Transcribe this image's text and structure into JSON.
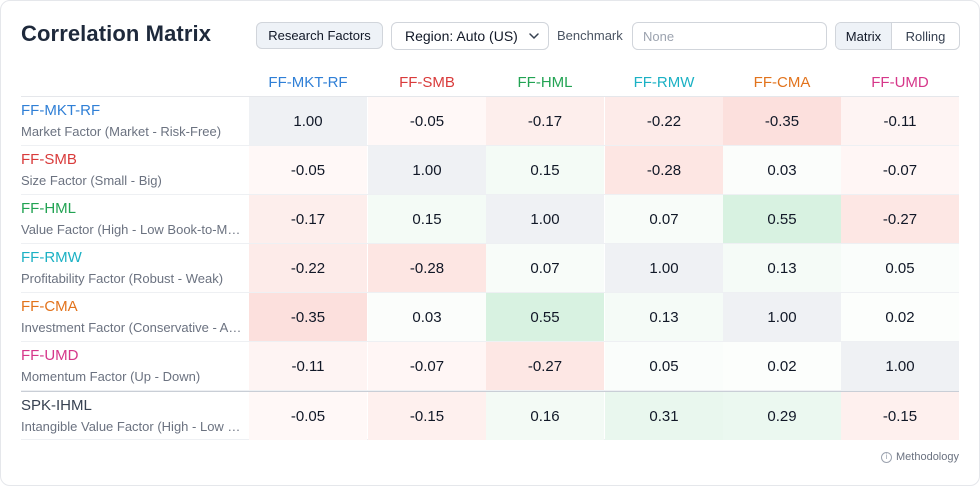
{
  "header": {
    "title": "Correlation Matrix",
    "research_button": "Research Factors",
    "region_select": "Region: Auto (US)",
    "benchmark_label": "Benchmark",
    "benchmark_placeholder": "None",
    "view_toggle": [
      "Matrix",
      "Rolling"
    ],
    "active_view": "Matrix"
  },
  "columns": [
    {
      "code": "FF-MKT-RF",
      "color": "#2f7fd6"
    },
    {
      "code": "FF-SMB",
      "color": "#d93b3b"
    },
    {
      "code": "FF-HML",
      "color": "#22a353"
    },
    {
      "code": "FF-RMW",
      "color": "#1bb1c4"
    },
    {
      "code": "FF-CMA",
      "color": "#e2731c"
    },
    {
      "code": "FF-UMD",
      "color": "#d6378a"
    }
  ],
  "rows": [
    {
      "code": "FF-MKT-RF",
      "desc": "Market Factor (Market - Risk-Free)",
      "color": "#2f7fd6",
      "values": [
        "1.00",
        "-0.05",
        "-0.17",
        "-0.22",
        "-0.35",
        "-0.11"
      ],
      "bg": [
        "#eff1f4",
        "#fff8f7",
        "#fdeeec",
        "#fdebe9",
        "#fce0dd",
        "#fef4f3"
      ]
    },
    {
      "code": "FF-SMB",
      "desc": "Size Factor (Small - Big)",
      "color": "#d93b3b",
      "values": [
        "-0.05",
        "1.00",
        "0.15",
        "-0.28",
        "0.03",
        "-0.07"
      ],
      "bg": [
        "#fff8f7",
        "#eff1f4",
        "#f4fbf6",
        "#fde6e3",
        "#fbfdfb",
        "#fff6f5"
      ]
    },
    {
      "code": "FF-HML",
      "desc": "Value Factor (High - Low Book-to-Market)",
      "color": "#22a353",
      "values": [
        "-0.17",
        "0.15",
        "1.00",
        "0.07",
        "0.55",
        "-0.27"
      ],
      "bg": [
        "#fdeeec",
        "#f4fbf6",
        "#eff1f4",
        "#f8fcf9",
        "#d8f2e1",
        "#fde7e4"
      ]
    },
    {
      "code": "FF-RMW",
      "desc": "Profitability Factor (Robust - Weak)",
      "color": "#1bb1c4",
      "values": [
        "-0.22",
        "-0.28",
        "0.07",
        "1.00",
        "0.13",
        "0.05"
      ],
      "bg": [
        "#fdebe9",
        "#fde6e3",
        "#f8fcf9",
        "#eff1f4",
        "#f5fbf7",
        "#fafdfb"
      ]
    },
    {
      "code": "FF-CMA",
      "desc": "Investment Factor (Conservative - Aggressive)",
      "color": "#e2731c",
      "values": [
        "-0.35",
        "0.03",
        "0.55",
        "0.13",
        "1.00",
        "0.02"
      ],
      "bg": [
        "#fce0dd",
        "#fbfdfb",
        "#d8f2e1",
        "#f5fbf7",
        "#eff1f4",
        "#fcfefc"
      ]
    },
    {
      "code": "FF-UMD",
      "desc": "Momentum Factor (Up - Down)",
      "color": "#d6378a",
      "values": [
        "-0.11",
        "-0.07",
        "-0.27",
        "0.05",
        "0.02",
        "1.00"
      ],
      "bg": [
        "#fef4f3",
        "#fff6f5",
        "#fde7e4",
        "#fafdfb",
        "#fcfefc",
        "#eff1f4"
      ]
    },
    {
      "code": "SPK-IHML",
      "desc": "Intangible Value Factor (High - Low Intangibles)",
      "color": "#374151",
      "values": [
        "-0.05",
        "-0.15",
        "0.16",
        "0.31",
        "0.29",
        "-0.15"
      ],
      "bg": [
        "#fff8f7",
        "#fef0ee",
        "#f3faf5",
        "#e9f7ee",
        "#ebf8f0",
        "#fef0ee"
      ]
    }
  ],
  "footer": {
    "icon": "info-icon",
    "text": "Methodology"
  }
}
